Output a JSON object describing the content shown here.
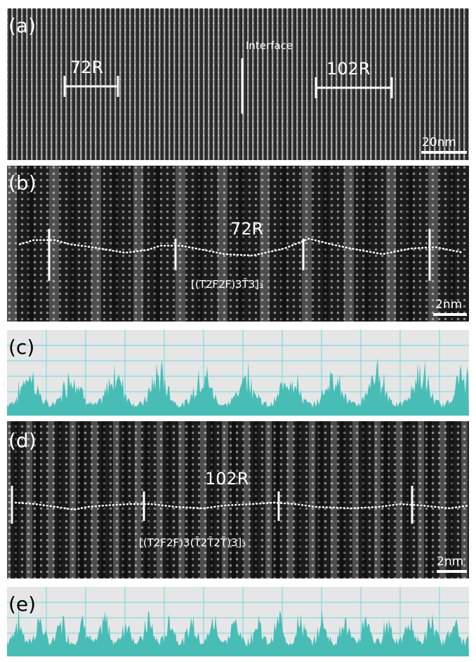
{
  "panel_a": {
    "label": "(a)",
    "left_period": "72R",
    "interface": "Interface",
    "right_period": "102R",
    "scale_bar": "20nm"
  },
  "panel_b": {
    "label": "(b)",
    "period": "72R",
    "stacking": "[(T2F2F)3T̄3]₃",
    "scale_bar": "2nm"
  },
  "panel_c": {
    "label": "(c)"
  },
  "panel_d": {
    "label": "(d)",
    "period": "102R",
    "stacking": "[(T2F2F)3(T̄2T̄2T̄)3]₃",
    "scale_bar": "2nm"
  },
  "panel_e": {
    "label": "(e)"
  }
}
